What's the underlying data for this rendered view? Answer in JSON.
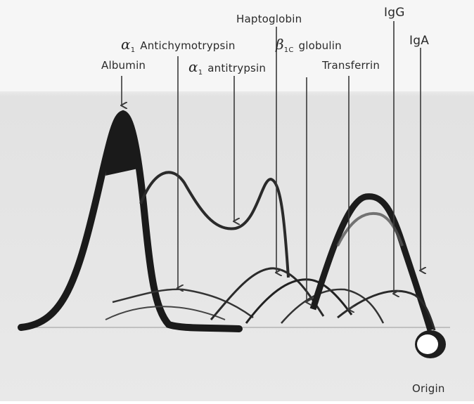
{
  "labels": {
    "albumin": "Albumin",
    "alpha1_antichymotrypsin": {
      "greek": "α",
      "sub": "1",
      "text": "Antichymotrypsin"
    },
    "alpha1_antitrypsin": {
      "greek": "α",
      "sub": "1",
      "text": "antitrypsin"
    },
    "haptoglobin": "Haptoglobin",
    "beta1c_globulin": {
      "greek": "β",
      "sub": "1C",
      "text": "globulin"
    },
    "transferrin": "Transferrin",
    "igg": "IgG",
    "iga": "IgA",
    "origin": "Origin"
  },
  "colors": {
    "background": "#e8e8e8",
    "precipitin_arc": "#1e1e1e",
    "arrow": "#3a3a3a",
    "label_text": "#2a2a2a"
  }
}
